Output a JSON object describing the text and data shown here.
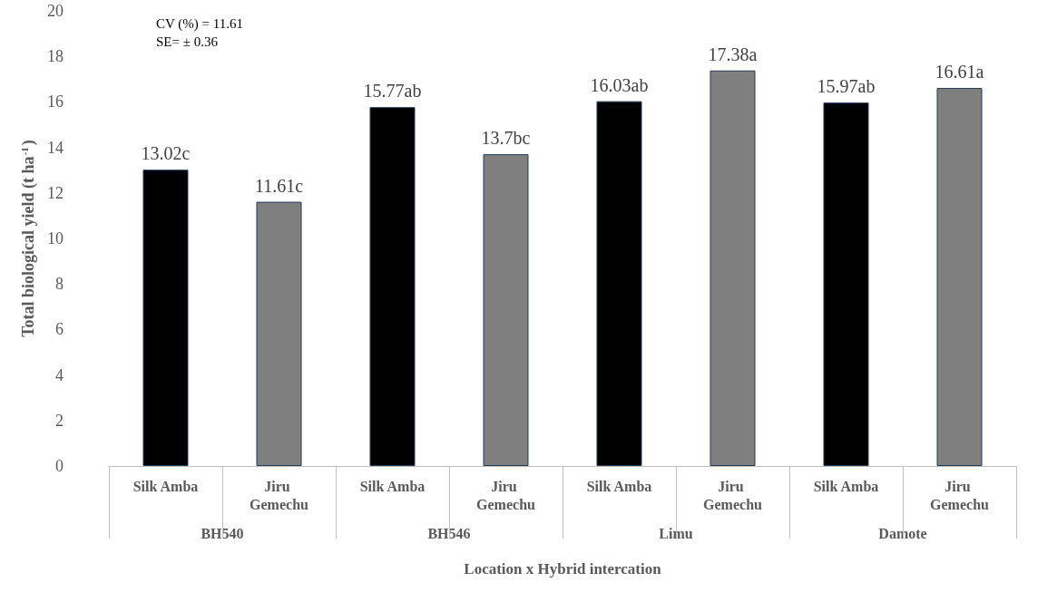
{
  "chart_data": {
    "type": "bar",
    "xlabel": "Location x Hybrid intercation",
    "ylabel": "Total biological yield (t ha$^{-1}$)",
    "categories": [
      "Silk Amba",
      "Jiru Gemechu",
      "Silk Amba",
      "Jiru Gemechu",
      "Silk Amba",
      "Jiru Gemechu",
      "Silk Amba",
      "Jiru Gemechu"
    ],
    "values": [
      13.02,
      11.61,
      15.77,
      13.7,
      16.03,
      17.38,
      15.97,
      16.61
    ],
    "value_labels": [
      "13.02c",
      "11.61c",
      "15.77ab",
      "13.7bc",
      "16.03ab",
      "17.38a",
      "15.97ab",
      "16.61a"
    ],
    "colors": [
      "#000000",
      "#7f7f7f",
      "#000000",
      "#7f7f7f",
      "#000000",
      "#7f7f7f",
      "#000000",
      "#7f7f7f"
    ],
    "ylim": [
      0,
      20
    ],
    "yticks": [
      0,
      2,
      4,
      6,
      8,
      10,
      12,
      14,
      16,
      18,
      20
    ],
    "grid": false,
    "annotations": [
      "CV (%) = 11.61",
      "SE= ± 0.36",
      "BH540",
      "BH546",
      "Limu",
      "Damote"
    ]
  }
}
